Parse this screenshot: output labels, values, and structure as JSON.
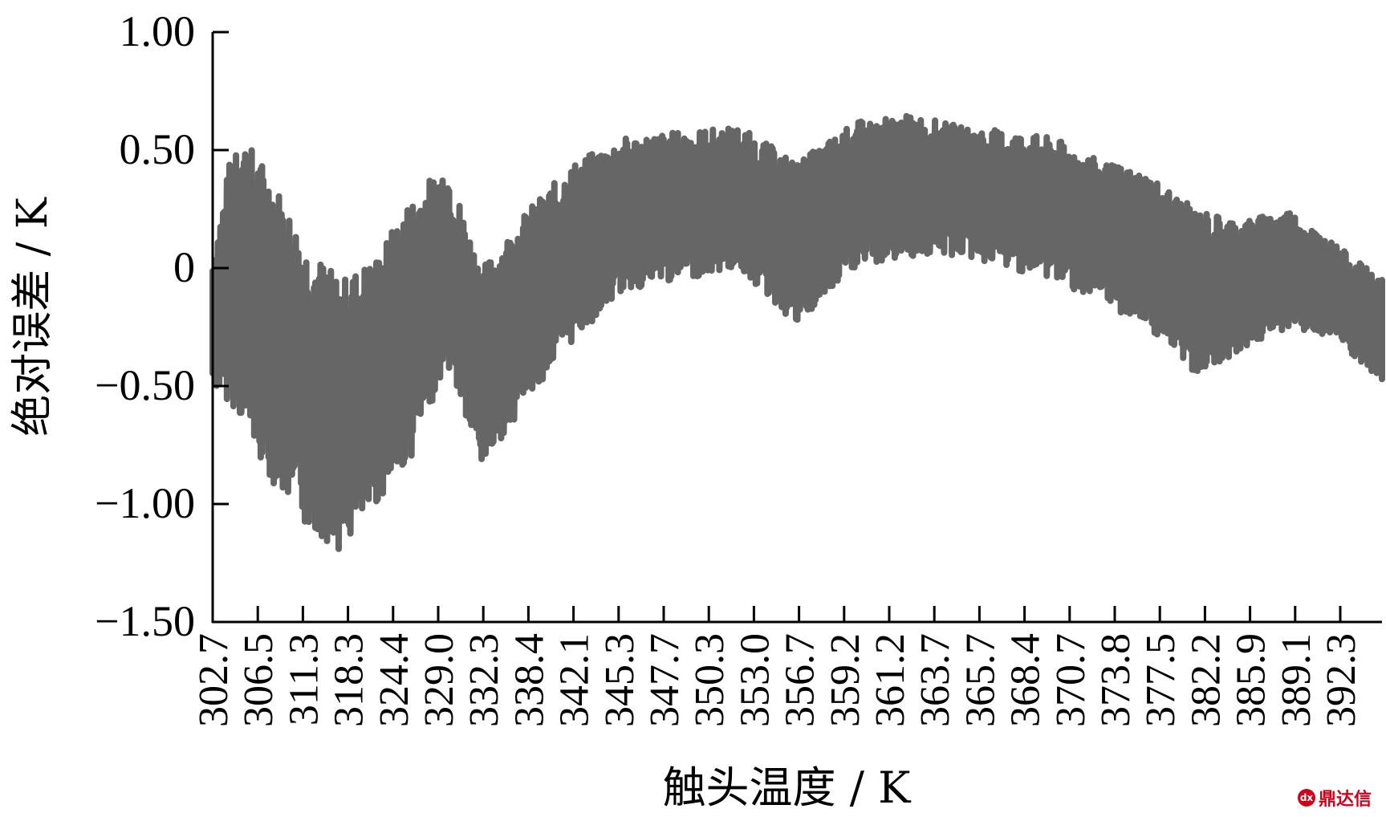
{
  "chart_data": {
    "type": "line",
    "xlabel": "触头温度 / K",
    "ylabel": "绝对误差 / K",
    "ylim": [
      -1.5,
      1.0
    ],
    "yticks": [
      {
        "value": 1.0,
        "label": "1.00"
      },
      {
        "value": 0.5,
        "label": "0.50"
      },
      {
        "value": 0.0,
        "label": "0"
      },
      {
        "value": -0.5,
        "label": "−0.50"
      },
      {
        "value": -1.0,
        "label": "−1.00"
      },
      {
        "value": -1.5,
        "label": "−1.50"
      }
    ],
    "xticks": [
      "302.7",
      "306.5",
      "311.3",
      "318.3",
      "324.4",
      "329.0",
      "332.3",
      "338.4",
      "342.1",
      "345.3",
      "347.7",
      "350.3",
      "353.0",
      "356.7",
      "359.2",
      "361.2",
      "363.7",
      "365.7",
      "368.4",
      "370.7",
      "373.8",
      "377.5",
      "382.2",
      "385.9",
      "389.1",
      "392.3"
    ],
    "series_color": "#666666",
    "envelope": {
      "position": [
        0.0,
        0.02,
        0.05,
        0.08,
        0.11,
        0.14,
        0.17,
        0.2,
        0.23,
        0.27,
        0.31,
        0.35,
        0.4,
        0.45,
        0.5,
        0.55,
        0.6,
        0.64,
        0.68,
        0.72,
        0.76,
        0.8,
        0.84,
        0.88,
        0.92,
        0.96,
        1.0
      ],
      "upper": [
        0.05,
        0.6,
        0.4,
        0.1,
        -0.05,
        0.05,
        0.3,
        0.45,
        0.0,
        0.25,
        0.45,
        0.55,
        0.58,
        0.6,
        0.45,
        0.62,
        0.65,
        0.6,
        0.58,
        0.55,
        0.45,
        0.4,
        0.25,
        0.2,
        0.25,
        0.1,
        -0.05
      ],
      "lower": [
        -0.5,
        -0.6,
        -0.9,
        -1.1,
        -1.2,
        -1.0,
        -0.8,
        -0.4,
        -0.85,
        -0.55,
        -0.3,
        -0.1,
        -0.05,
        0.0,
        -0.25,
        0.0,
        0.05,
        0.05,
        0.0,
        -0.05,
        -0.15,
        -0.25,
        -0.45,
        -0.35,
        -0.25,
        -0.3,
        -0.5
      ]
    }
  },
  "watermark": {
    "text": "鼎达信"
  }
}
